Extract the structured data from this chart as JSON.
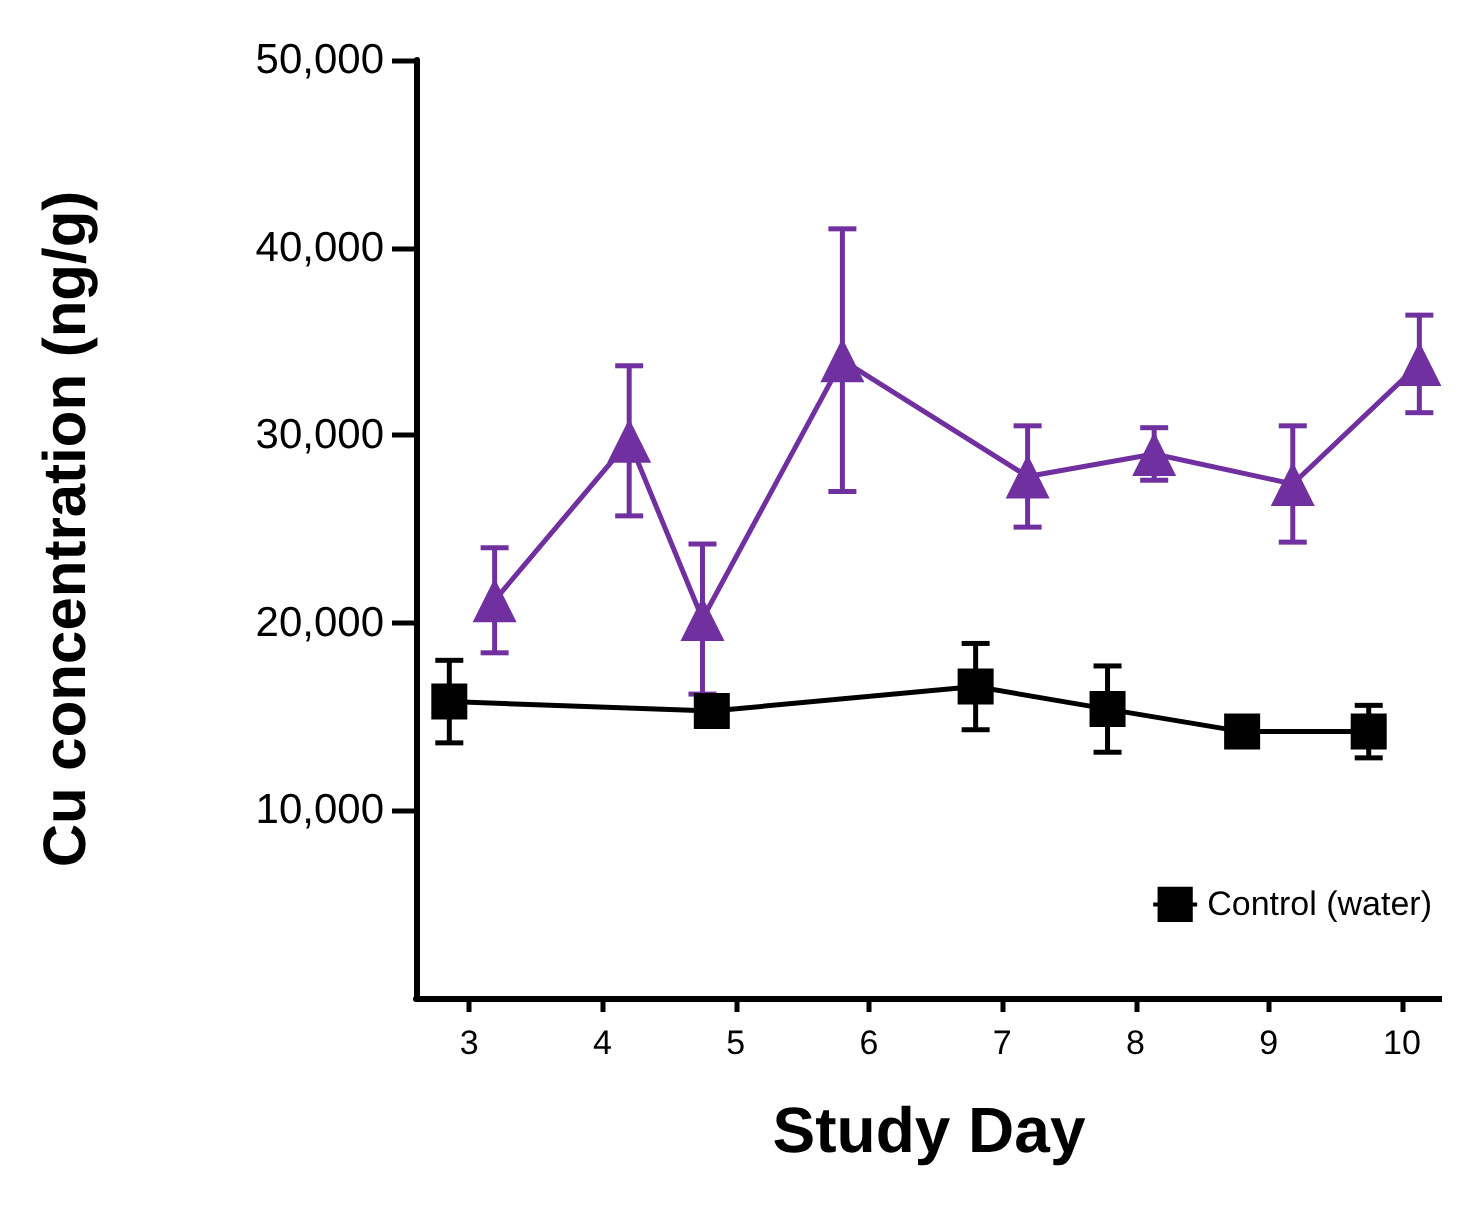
{
  "chart_data": {
    "type": "line",
    "xlabel": "Study Day",
    "ylabel": "Cu concentration (ng/g)",
    "xlim": [
      2.6,
      10.3
    ],
    "xticks": [
      3,
      4,
      5,
      6,
      7,
      8,
      9,
      10
    ],
    "ylim": [
      0,
      50000
    ],
    "yticks": [
      {
        "value": 10000,
        "label": "10,000"
      },
      {
        "value": 20000,
        "label": "20,000"
      },
      {
        "value": 30000,
        "label": "30,000"
      },
      {
        "value": 40000,
        "label": "40,000"
      },
      {
        "value": 50000,
        "label": "50,000"
      }
    ],
    "grid": false,
    "legend": "bottom right",
    "line_style": "solid",
    "series": [
      {
        "color": "#7030a0",
        "marker": "triangle",
        "x": [
          3.19,
          4.2,
          4.75,
          5.8,
          7.19,
          8.14,
          9.18,
          10.13
        ],
        "values": [
          21200,
          29700,
          20200,
          34000,
          27800,
          29000,
          27400,
          33800
        ],
        "errors": [
          2800,
          4000,
          4000,
          7000,
          2700,
          1400,
          3100,
          2600
        ]
      },
      {
        "name": "Control (water)",
        "color": "#000000",
        "marker": "square",
        "x": [
          2.85,
          4.82,
          6.8,
          7.79,
          8.8,
          9.75
        ],
        "values": [
          15800,
          15300,
          16600,
          15400,
          14200,
          14200
        ],
        "errors": [
          2200,
          500,
          2300,
          2300,
          500,
          1400
        ]
      }
    ]
  }
}
